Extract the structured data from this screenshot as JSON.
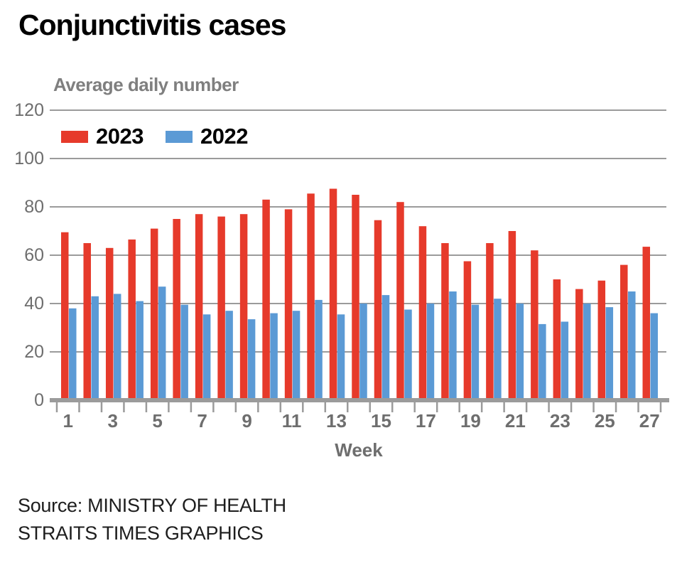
{
  "header": {
    "title": "Conjunctivitis cases",
    "subtitle": "Average daily number"
  },
  "legend": {
    "items": [
      {
        "label": "2023",
        "color": "#e63a2b"
      },
      {
        "label": "2022",
        "color": "#5b9ad5"
      }
    ]
  },
  "footer": {
    "source_line1": "Source: MINISTRY OF HEALTH",
    "source_line2": "STRAITS TIMES GRAPHICS"
  },
  "colors": {
    "red": "#e63a2b",
    "blue": "#5b9ad5",
    "grid": "#9b9b9b",
    "axis": "#9b9b9b",
    "axis_label_gray": "#6e6e6e",
    "subtitle_gray": "#7f7f7f",
    "title_black": "#000000",
    "source_text": "#1d1d1d"
  },
  "chart_data": {
    "type": "bar",
    "title": "Conjunctivitis cases",
    "subtitle": "Average daily number",
    "xlabel": "Week",
    "ylabel": "Average daily number",
    "ylim": [
      0,
      120
    ],
    "yticks": [
      0,
      20,
      40,
      60,
      80,
      100,
      120
    ],
    "xtick_labels": [
      "1",
      "3",
      "5",
      "7",
      "9",
      "11",
      "13",
      "15",
      "17",
      "19",
      "21",
      "23",
      "25",
      "27"
    ],
    "grid": "horizontal",
    "legend_position": "top-left",
    "categories": [
      1,
      2,
      3,
      4,
      5,
      6,
      7,
      8,
      9,
      10,
      11,
      12,
      13,
      14,
      15,
      16,
      17,
      18,
      19,
      20,
      21,
      22,
      23,
      24,
      25,
      26,
      27
    ],
    "series": [
      {
        "name": "2023",
        "color": "#e63a2b",
        "values": [
          69.5,
          65,
          63,
          66.5,
          71,
          75,
          77,
          76,
          77,
          83,
          79,
          85.5,
          87.5,
          85,
          74.5,
          82,
          72,
          65,
          57.5,
          65,
          70,
          62,
          50,
          46,
          49.5,
          56,
          63.5
        ]
      },
      {
        "name": "2022",
        "color": "#5b9ad5",
        "values": [
          38,
          43,
          44,
          41,
          47,
          39.5,
          35.5,
          37,
          33.5,
          36,
          37,
          41.5,
          35.5,
          40,
          43.5,
          37.5,
          40,
          45,
          39.5,
          42,
          40,
          31.5,
          32.5,
          40,
          38.5,
          45,
          36
        ]
      }
    ]
  }
}
